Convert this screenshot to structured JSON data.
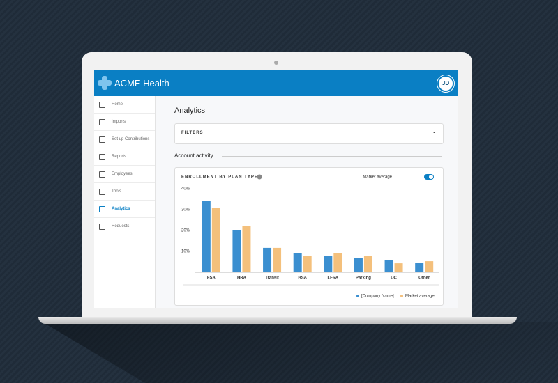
{
  "app": {
    "brand": "ACME Health",
    "avatar": "JD"
  },
  "nav": [
    "Home",
    "Imports",
    "Set up Contributions",
    "Reports",
    "Employees",
    "Tools",
    "Analytics",
    "Requests"
  ],
  "active_nav": 6,
  "page_title": "Analytics",
  "filters": "FILTERS",
  "section": "Account activity",
  "chart_data": {
    "type": "bar",
    "title": "ENROLLMENT BY PLAN TYPE",
    "toggle_label": "Market average",
    "categories": [
      "FSA",
      "HRA",
      "Transit",
      "HSA",
      "LFSA",
      "Parking",
      "DC",
      "Other"
    ],
    "series": [
      {
        "name": "[Company Name]",
        "color": "#3b8fd0",
        "values": [
          34.3,
          20,
          11.7,
          9,
          8,
          6.7,
          5.7,
          4.5
        ]
      },
      {
        "name": "Market average",
        "color": "#f4c07c",
        "values": [
          30.7,
          22,
          11.7,
          7.7,
          9.3,
          7.7,
          4.3,
          5.3
        ]
      }
    ],
    "ylim": [
      0,
      40
    ],
    "yticks": [
      {
        "value": 10,
        "label": "10%"
      },
      {
        "value": 20,
        "label": "20%"
      },
      {
        "value": 30,
        "label": "30%"
      },
      {
        "value": 40,
        "label": "40%"
      }
    ]
  }
}
